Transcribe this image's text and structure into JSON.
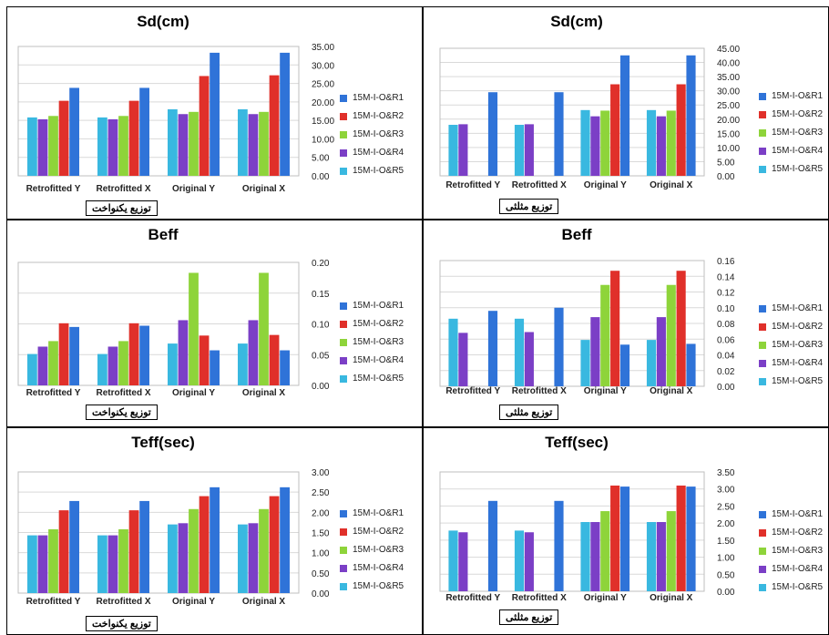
{
  "series_names": [
    "15M-I-O&R1",
    "15M-I-O&R2",
    "15M-I-O&R3",
    "15M-I-O&R4",
    "15M-I-O&R5"
  ],
  "colors": [
    "#2f73d8",
    "#e0302a",
    "#8ed43a",
    "#7b3fc6",
    "#39b8e0"
  ],
  "chart_data": [
    {
      "type": "bar",
      "title": "Sd(cm)",
      "caption": "توزیع یکنواخت",
      "categories": [
        "Retrofitted Y",
        "Retrofitted X",
        "Original Y",
        "Original X"
      ],
      "ylim": [
        0,
        35
      ],
      "yticks": [
        "0.00",
        "5.00",
        "10.00",
        "15.00",
        "20.00",
        "25.00",
        "30.00",
        "35.00"
      ],
      "series": [
        {
          "name": "15M-I-O&R1",
          "values": [
            23.8,
            23.8,
            33.3,
            33.3
          ]
        },
        {
          "name": "15M-I-O&R2",
          "values": [
            20.3,
            20.3,
            27.0,
            27.2
          ]
        },
        {
          "name": "15M-I-O&R3",
          "values": [
            16.2,
            16.2,
            17.3,
            17.3
          ]
        },
        {
          "name": "15M-I-O&R4",
          "values": [
            15.3,
            15.3,
            16.7,
            16.7
          ]
        },
        {
          "name": "15M-I-O&R5",
          "values": [
            15.8,
            15.8,
            18.0,
            18.0
          ]
        }
      ]
    },
    {
      "type": "bar",
      "title": "Sd(cm)",
      "caption": "توزیع مثلثی",
      "categories": [
        "Retrofitted Y",
        "Retrofitted X",
        "Original Y",
        "Original X"
      ],
      "ylim": [
        0,
        45
      ],
      "yticks": [
        "0.00",
        "5.00",
        "10.00",
        "15.00",
        "20.00",
        "25.00",
        "30.00",
        "35.00",
        "40.00",
        "45.00"
      ],
      "series": [
        {
          "name": "15M-I-O&R1",
          "values": [
            29.5,
            29.5,
            42.5,
            42.5
          ]
        },
        {
          "name": "15M-I-O&R2",
          "values": [
            0,
            0,
            32.3,
            32.3
          ]
        },
        {
          "name": "15M-I-O&R3",
          "values": [
            0,
            0,
            23.0,
            23.0
          ]
        },
        {
          "name": "15M-I-O&R4",
          "values": [
            18.2,
            18.2,
            21.0,
            21.0
          ]
        },
        {
          "name": "15M-I-O&R5",
          "values": [
            18.0,
            18.0,
            23.2,
            23.2
          ]
        }
      ]
    },
    {
      "type": "bar",
      "title": "Beff",
      "caption": "توزیع یکنواخت",
      "categories": [
        "Retrofitted Y",
        "Retrofitted X",
        "Original Y",
        "Original X"
      ],
      "ylim": [
        0,
        0.2
      ],
      "yticks": [
        "0.00",
        "0.05",
        "0.10",
        "0.15",
        "0.20"
      ],
      "series": [
        {
          "name": "15M-I-O&R1",
          "values": [
            0.095,
            0.097,
            0.057,
            0.057
          ]
        },
        {
          "name": "15M-I-O&R2",
          "values": [
            0.101,
            0.101,
            0.081,
            0.082
          ]
        },
        {
          "name": "15M-I-O&R3",
          "values": [
            0.072,
            0.072,
            0.183,
            0.183
          ]
        },
        {
          "name": "15M-I-O&R4",
          "values": [
            0.063,
            0.063,
            0.106,
            0.106
          ]
        },
        {
          "name": "15M-I-O&R5",
          "values": [
            0.051,
            0.051,
            0.068,
            0.068
          ]
        }
      ]
    },
    {
      "type": "bar",
      "title": "Beff",
      "caption": "توزیع مثلثی",
      "categories": [
        "Retrofitted Y",
        "Retrofitted X",
        "Original Y",
        "Original X"
      ],
      "ylim": [
        0,
        0.16
      ],
      "yticks": [
        "0.00",
        "0.02",
        "0.04",
        "0.06",
        "0.08",
        "0.10",
        "0.12",
        "0.14",
        "0.16"
      ],
      "series": [
        {
          "name": "15M-I-O&R1",
          "values": [
            0.096,
            0.1,
            0.053,
            0.054
          ]
        },
        {
          "name": "15M-I-O&R2",
          "values": [
            0,
            0,
            0.147,
            0.147
          ]
        },
        {
          "name": "15M-I-O&R3",
          "values": [
            0,
            0,
            0.129,
            0.129
          ]
        },
        {
          "name": "15M-I-O&R4",
          "values": [
            0.068,
            0.069,
            0.088,
            0.088
          ]
        },
        {
          "name": "15M-I-O&R5",
          "values": [
            0.086,
            0.086,
            0.059,
            0.059
          ]
        }
      ]
    },
    {
      "type": "bar",
      "title": "Teff(sec)",
      "caption": "توزیع یکنواخت",
      "categories": [
        "Retrofitted Y",
        "Retrofitted X",
        "Original Y",
        "Original X"
      ],
      "ylim": [
        0,
        3
      ],
      "yticks": [
        "0.00",
        "0.50",
        "1.00",
        "1.50",
        "2.00",
        "2.50",
        "3.00"
      ],
      "series": [
        {
          "name": "15M-I-O&R1",
          "values": [
            2.28,
            2.28,
            2.62,
            2.62
          ]
        },
        {
          "name": "15M-I-O&R2",
          "values": [
            2.05,
            2.05,
            2.4,
            2.4
          ]
        },
        {
          "name": "15M-I-O&R3",
          "values": [
            1.58,
            1.58,
            2.08,
            2.08
          ]
        },
        {
          "name": "15M-I-O&R4",
          "values": [
            1.43,
            1.43,
            1.73,
            1.73
          ]
        },
        {
          "name": "15M-I-O&R5",
          "values": [
            1.43,
            1.43,
            1.7,
            1.7
          ]
        }
      ]
    },
    {
      "type": "bar",
      "title": "Teff(sec)",
      "caption": "توزیع مثلثی",
      "categories": [
        "Retrofitted Y",
        "Retrofitted X",
        "Original Y",
        "Original X"
      ],
      "ylim": [
        0,
        3.5
      ],
      "yticks": [
        "0.00",
        "0.50",
        "1.00",
        "1.50",
        "2.00",
        "2.50",
        "3.00",
        "3.50"
      ],
      "series": [
        {
          "name": "15M-I-O&R1",
          "values": [
            2.65,
            2.65,
            3.07,
            3.07
          ]
        },
        {
          "name": "15M-I-O&R2",
          "values": [
            0,
            0,
            3.1,
            3.1
          ]
        },
        {
          "name": "15M-I-O&R3",
          "values": [
            0,
            0,
            2.35,
            2.35
          ]
        },
        {
          "name": "15M-I-O&R4",
          "values": [
            1.73,
            1.73,
            2.03,
            2.03
          ]
        },
        {
          "name": "15M-I-O&R5",
          "values": [
            1.78,
            1.78,
            2.03,
            2.03
          ]
        }
      ]
    }
  ]
}
